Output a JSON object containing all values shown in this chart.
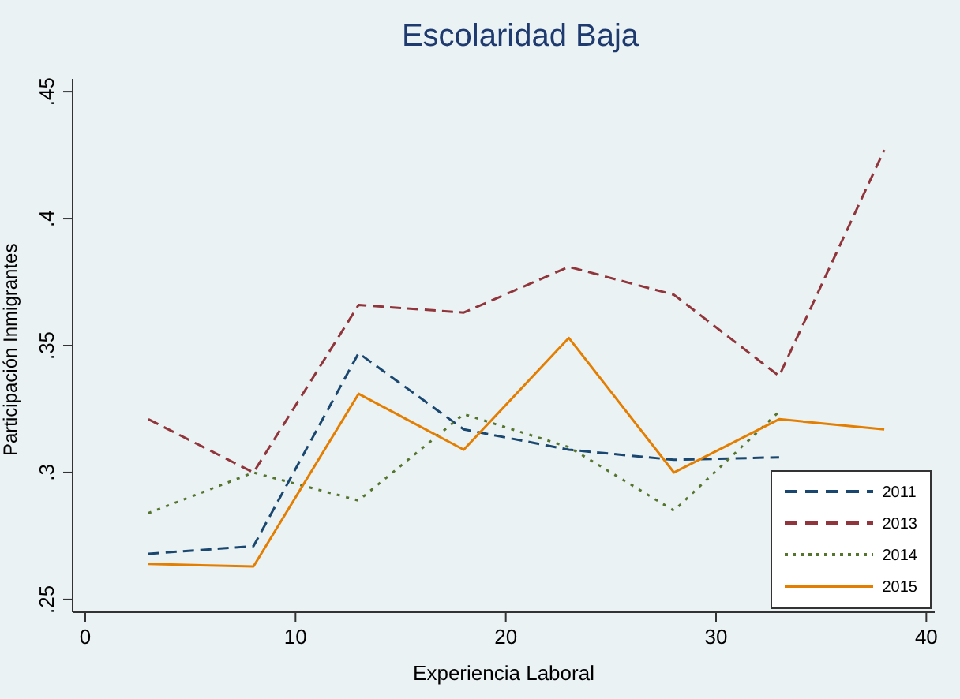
{
  "chart_data": {
    "type": "line",
    "title": "Escolaridad Baja",
    "xlabel": "Experiencia Laboral",
    "ylabel": "Participación Inmigrantes",
    "x": [
      3,
      8,
      13,
      18,
      23,
      28,
      33,
      38
    ],
    "series": [
      {
        "name": "2011",
        "color": "#1a476f",
        "line_style": "dashed",
        "values": [
          0.268,
          0.271,
          0.347,
          0.317,
          0.309,
          0.305,
          0.306,
          null
        ]
      },
      {
        "name": "2013",
        "color": "#90353b",
        "line_style": "dashed",
        "values": [
          0.321,
          0.3,
          0.366,
          0.363,
          0.381,
          0.37,
          0.338,
          0.427
        ]
      },
      {
        "name": "2014",
        "color": "#55752f",
        "line_style": "dotted",
        "values": [
          0.284,
          0.3,
          0.289,
          0.323,
          0.31,
          0.285,
          0.324,
          null
        ]
      },
      {
        "name": "2015",
        "color": "#e37e00",
        "line_style": "solid",
        "values": [
          0.264,
          0.263,
          0.331,
          0.309,
          0.353,
          0.3,
          0.321,
          0.317
        ]
      }
    ],
    "xlim": [
      -0.6,
      40.4
    ],
    "xticks": [
      0,
      10,
      20,
      30,
      40
    ],
    "ylim": [
      0.245,
      0.455
    ],
    "yticks": [
      {
        "value": 0.25,
        "label": ".25"
      },
      {
        "value": 0.3,
        "label": ".3"
      },
      {
        "value": 0.35,
        "label": ".35"
      },
      {
        "value": 0.4,
        "label": ".4"
      },
      {
        "value": 0.45,
        "label": ".45"
      }
    ],
    "grid": false,
    "legend": "bottom right",
    "marker": "none"
  }
}
